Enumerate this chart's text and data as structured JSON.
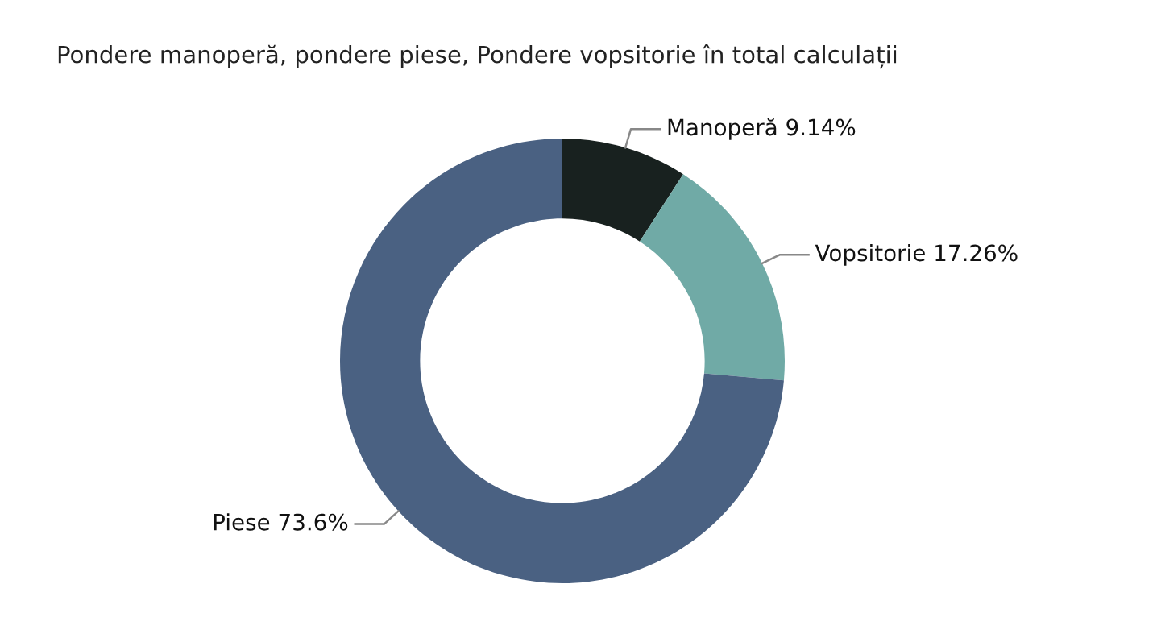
{
  "chart_data": {
    "type": "donut",
    "title": "Pondere manoperă, pondere piese, Pondere vopsitorie în total calculații",
    "categories": [
      "Manoperă",
      "Vopsitorie",
      "Piese"
    ],
    "values": [
      9.14,
      17.26,
      73.6
    ],
    "value_labels": [
      "9.14%",
      "17.26%",
      "73.6%"
    ],
    "colors": [
      "#18211f",
      "#70aaa6",
      "#4a6182"
    ],
    "legend": false
  }
}
